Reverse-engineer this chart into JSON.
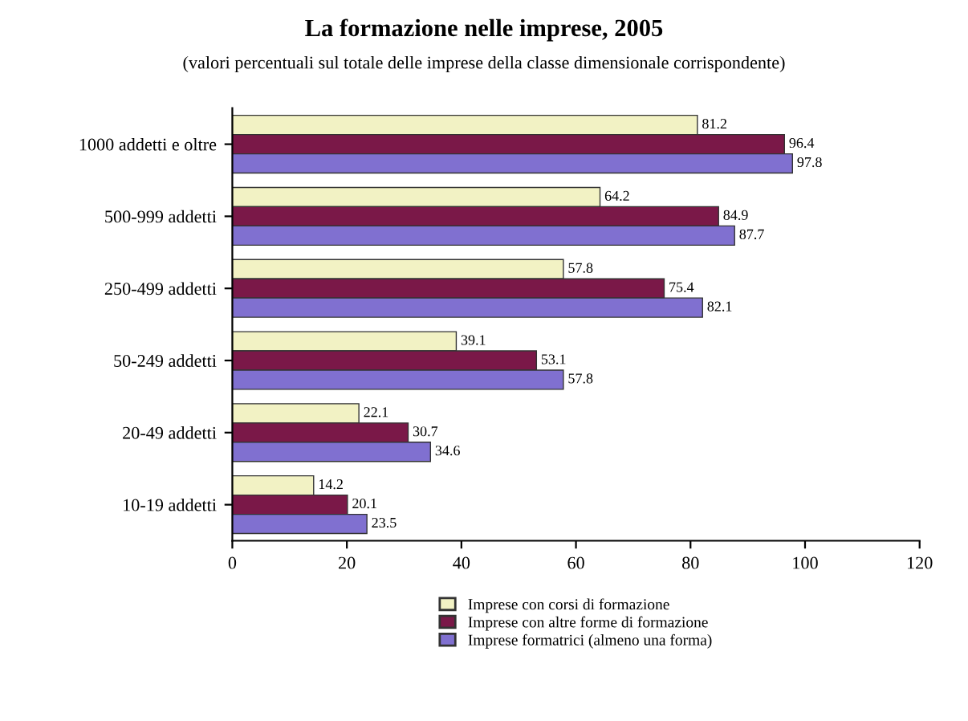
{
  "chart_data": {
    "type": "bar",
    "orientation": "horizontal",
    "title": "La formazione nelle imprese, 2005",
    "subtitle": "(valori percentuali sul totale delle imprese della classe dimensionale corrispondente)",
    "categories": [
      "1000 addetti e oltre",
      "500-999 addetti",
      "250-499 addetti",
      "50-249 addetti",
      "20-49 addetti",
      "10-19 addetti"
    ],
    "series": [
      {
        "name": "Imprese con corsi di formazione",
        "color": "#f2f2c4",
        "values": [
          81.2,
          64.2,
          57.8,
          39.1,
          22.1,
          14.2
        ]
      },
      {
        "name": "Imprese con altre forme di formazione",
        "color": "#7a1848",
        "values": [
          96.4,
          84.9,
          75.4,
          53.1,
          30.7,
          20.1
        ]
      },
      {
        "name": "Imprese formatrici (almeno una forma)",
        "color": "#8070d0",
        "values": [
          97.8,
          87.7,
          82.1,
          57.8,
          34.6,
          23.5
        ]
      }
    ],
    "xlim": [
      0,
      120
    ],
    "xticks": [
      0,
      20,
      40,
      60,
      80,
      100,
      120
    ],
    "data_labels": true,
    "grid": false,
    "legend": "bottom"
  }
}
